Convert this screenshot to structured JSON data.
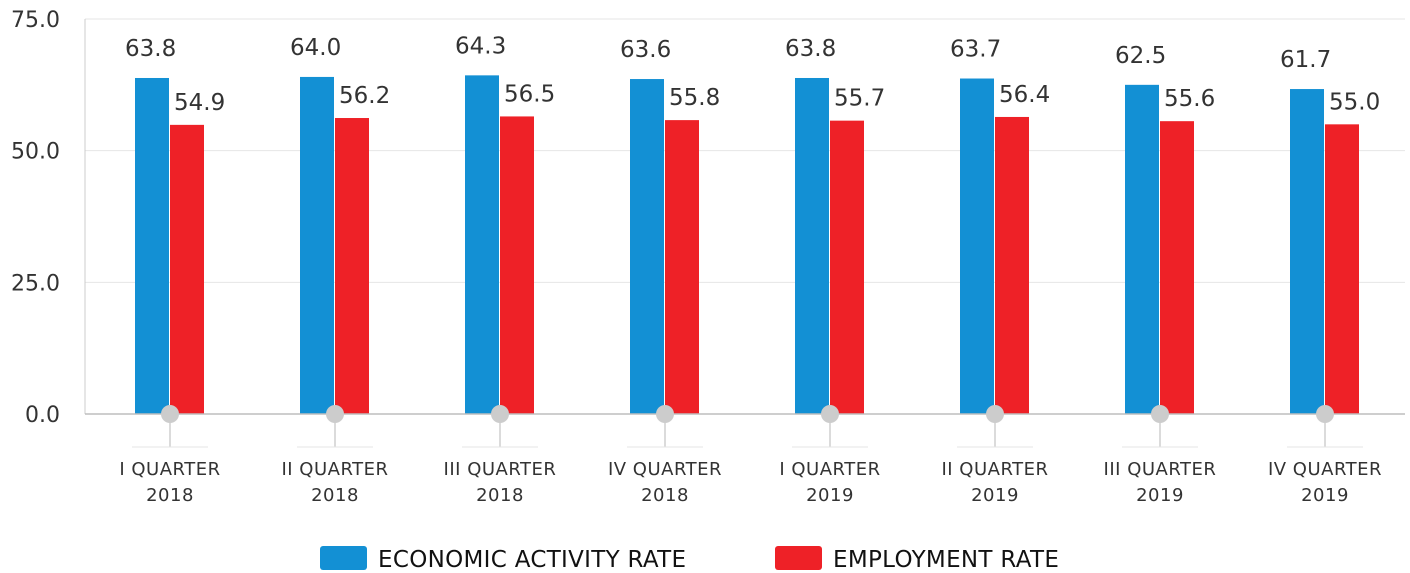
{
  "chart_data": {
    "type": "bar",
    "categories": [
      [
        "I QUARTER",
        "2018"
      ],
      [
        "II QUARTER",
        "2018"
      ],
      [
        "III QUARTER",
        "2018"
      ],
      [
        "IV QUARTER",
        "2018"
      ],
      [
        "I QUARTER",
        "2019"
      ],
      [
        "II QUARTER",
        "2019"
      ],
      [
        "III QUARTER",
        "2019"
      ],
      [
        "IV QUARTER",
        "2019"
      ]
    ],
    "series": [
      {
        "name": "ECONOMIC ACTIVITY RATE",
        "color": "#1390d4",
        "values": [
          63.8,
          64.0,
          64.3,
          63.6,
          63.8,
          63.7,
          62.5,
          61.7
        ],
        "labels": [
          "63.8",
          "64.0",
          "64.3",
          "63.6",
          "63.8",
          "63.7",
          "62.5",
          "61.7"
        ]
      },
      {
        "name": "EMPLOYMENT RATE",
        "color": "#ee2127",
        "values": [
          54.9,
          56.2,
          56.5,
          55.8,
          55.7,
          56.4,
          55.6,
          55.0
        ],
        "labels": [
          "54.9",
          "56.2",
          "56.5",
          "55.8",
          "55.7",
          "56.4",
          "55.6",
          "55.0"
        ]
      }
    ],
    "ylim": [
      0,
      75
    ],
    "yticks": [
      "0.0",
      "25.0",
      "50.0",
      "75.0"
    ],
    "ytick_values": [
      0,
      25,
      50,
      75
    ],
    "grid": true,
    "legend_position": "bottom-center"
  }
}
